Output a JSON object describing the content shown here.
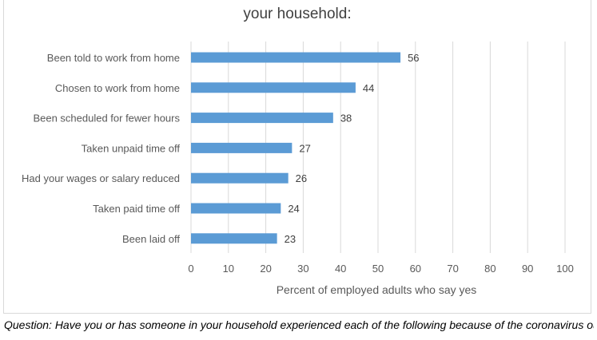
{
  "chart_data": {
    "type": "bar",
    "orientation": "horizontal",
    "title": "your household:",
    "categories": [
      "Been told to work from home",
      "Chosen to work from home",
      "Been scheduled for fewer hours",
      "Taken unpaid time off",
      "Had your wages or salary reduced",
      "Taken paid time off",
      "Been laid off"
    ],
    "values": [
      56,
      44,
      38,
      27,
      26,
      24,
      23
    ],
    "xlabel": "Percent of employed adults who say yes",
    "ylabel": "",
    "xlim": [
      0,
      100
    ],
    "xticks": [
      0,
      10,
      20,
      30,
      40,
      50,
      60,
      70,
      80,
      90,
      100
    ],
    "grid": "vertical",
    "bar_color": "#5b9bd5"
  },
  "footer": {
    "question": "Question: Have you or has someone in your household experienced each of the following because of the coronavirus outbreak? Asked of adults who were employed before the pandemic outbreak."
  }
}
